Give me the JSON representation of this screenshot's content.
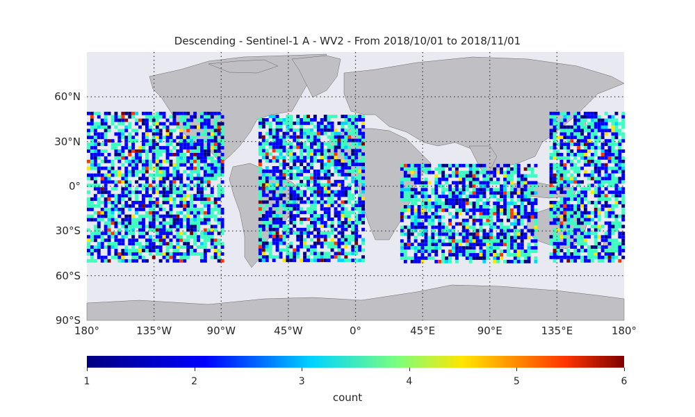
{
  "title": "Descending - Sentinel-1 A - WV2 - From 2018/10/01 to 2018/11/01",
  "map": {
    "projection": "equirectangular",
    "lon_range": [
      -180,
      180
    ],
    "lat_range": [
      -90,
      90
    ],
    "ocean_color": "#e9e9f2",
    "land_color": "#bfbfc4",
    "grid": "dotted",
    "lon_ticks": [
      {
        "value": -180,
        "label": "180°"
      },
      {
        "value": -135,
        "label": "135°W"
      },
      {
        "value": -90,
        "label": "90°W"
      },
      {
        "value": -45,
        "label": "45°W"
      },
      {
        "value": 0,
        "label": "0°"
      },
      {
        "value": 45,
        "label": "45°E"
      },
      {
        "value": 90,
        "label": "90°E"
      },
      {
        "value": 135,
        "label": "135°E"
      },
      {
        "value": 180,
        "label": "180°"
      }
    ],
    "lat_ticks": [
      {
        "value": 60,
        "label": "60°N"
      },
      {
        "value": 30,
        "label": "30°N"
      },
      {
        "value": 0,
        "label": "0°"
      },
      {
        "value": -30,
        "label": "30°S"
      },
      {
        "value": -60,
        "label": "60°S"
      },
      {
        "value": -90,
        "label": "90°S"
      }
    ],
    "coverage_regions": [
      {
        "name": "north-pacific",
        "lon": [
          -180,
          -90
        ],
        "lat": [
          -50,
          50
        ]
      },
      {
        "name": "atlantic",
        "lon": [
          -65,
          5
        ],
        "lat": [
          -50,
          48
        ]
      },
      {
        "name": "indian-ocean",
        "lon": [
          30,
          120
        ],
        "lat": [
          -50,
          15
        ]
      },
      {
        "name": "west-pacific",
        "lon": [
          130,
          180
        ],
        "lat": [
          -50,
          50
        ]
      }
    ]
  },
  "colorbar": {
    "label": "count",
    "cmap": "jet",
    "min": 1,
    "max": 6,
    "ticks": [
      "1",
      "2",
      "3",
      "4",
      "5",
      "6"
    ]
  }
}
